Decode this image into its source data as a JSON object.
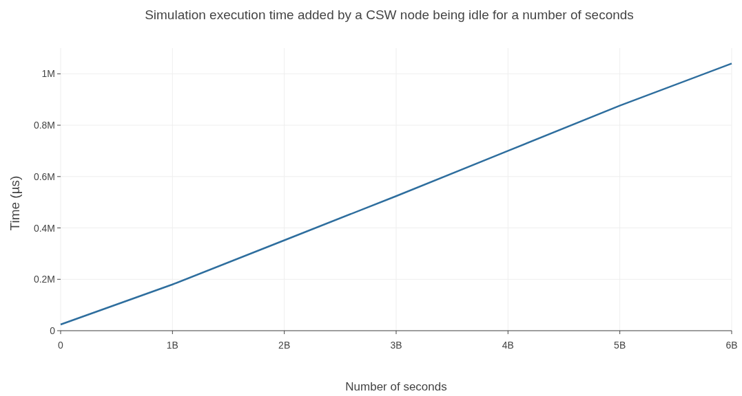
{
  "chart_data": {
    "type": "line",
    "title": "Simulation execution time added by a CSW node being idle for a number of seconds",
    "xlabel": "Number of seconds",
    "ylabel": "Time (µs)",
    "x": [
      0,
      1000000000,
      2000000000,
      3000000000,
      4000000000,
      5000000000,
      6000000000
    ],
    "series": [
      {
        "color": "#2e6e9e",
        "values": [
          24000,
          180000,
          352000,
          524000,
          700000,
          876000,
          1040000
        ]
      }
    ],
    "xlim": [
      0,
      6000000000
    ],
    "xticks": [
      0,
      {
        "value": 1000000000,
        "label": "1B"
      },
      {
        "value": 2000000000,
        "label": "2B"
      },
      {
        "value": 3000000000,
        "label": "3B"
      },
      {
        "value": 4000000000,
        "label": "4B"
      },
      {
        "value": 5000000000,
        "label": "5B"
      },
      {
        "value": 6000000000,
        "label": "6B"
      }
    ],
    "ylim": [
      0,
      1100000
    ],
    "yticks": [
      0,
      {
        "value": 200000,
        "label": "0.2M"
      },
      {
        "value": 400000,
        "label": "0.4M"
      },
      {
        "value": 600000,
        "label": "0.6M"
      },
      {
        "value": 800000,
        "label": "0.8M"
      },
      {
        "value": 1000000,
        "label": "1M"
      }
    ],
    "grid": true,
    "marker": "none",
    "line_style": "solid"
  }
}
